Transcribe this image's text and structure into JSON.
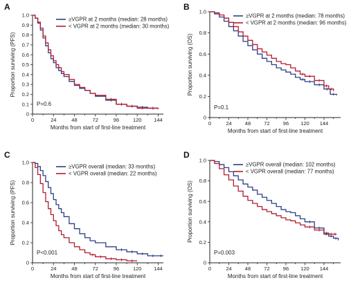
{
  "colors": {
    "blue": "#2a3f85",
    "red": "#b01c2e",
    "axis": "#222222"
  },
  "chart_data": [
    {
      "type": "line",
      "panel_label": "A",
      "xlabel": "Months from start of first-line treatment",
      "ylabel": "Proportion surviving (PFS)",
      "xlim": [
        0,
        150
      ],
      "ylim": [
        0,
        1.0
      ],
      "xticks": [
        0,
        24,
        48,
        72,
        96,
        120,
        144
      ],
      "yticks": [
        0,
        0.1,
        0.2,
        0.3,
        0.4,
        0.5,
        0.6,
        0.7,
        0.8,
        0.9,
        1.0
      ],
      "legend_position": "top-right",
      "annotation": "P=0.6",
      "series": [
        {
          "name": "≥VGPR at 2 months (median: 28 months)",
          "color": "#2a3f85",
          "x": [
            0,
            3,
            6,
            9,
            12,
            15,
            18,
            21,
            24,
            27,
            30,
            33,
            36,
            42,
            48,
            54,
            60,
            66,
            72,
            84,
            96,
            108,
            120,
            132,
            144
          ],
          "y": [
            1.0,
            0.97,
            0.92,
            0.85,
            0.77,
            0.69,
            0.62,
            0.56,
            0.52,
            0.47,
            0.44,
            0.41,
            0.38,
            0.33,
            0.29,
            0.26,
            0.24,
            0.21,
            0.18,
            0.14,
            0.1,
            0.08,
            0.07,
            0.06,
            0.06
          ]
        },
        {
          "name": "< VGPR at 2 months (median: 30 months)",
          "color": "#b01c2e",
          "x": [
            0,
            3,
            6,
            9,
            12,
            15,
            18,
            21,
            24,
            27,
            30,
            33,
            36,
            42,
            48,
            54,
            60,
            66,
            72,
            84,
            96,
            108,
            120,
            132,
            144
          ],
          "y": [
            1.0,
            0.97,
            0.93,
            0.87,
            0.79,
            0.72,
            0.65,
            0.59,
            0.54,
            0.5,
            0.47,
            0.43,
            0.4,
            0.35,
            0.3,
            0.27,
            0.24,
            0.21,
            0.19,
            0.15,
            0.1,
            0.08,
            0.06,
            0.06,
            0.05
          ]
        }
      ]
    },
    {
      "type": "line",
      "panel_label": "B",
      "xlabel": "Months from start of first-line treatment",
      "ylabel": "Proportion surviving (OS)",
      "xlim": [
        0,
        165
      ],
      "ylim": [
        0,
        1.0
      ],
      "xticks": [
        0,
        24,
        48,
        72,
        96,
        120,
        144
      ],
      "yticks": [
        0,
        0.2,
        0.4,
        0.6,
        0.8,
        1.0
      ],
      "legend_position": "top-right",
      "annotation": "P=0.1",
      "series": [
        {
          "name": "≥VGPR at 2 months (median: 78 months)",
          "color": "#2a3f85",
          "x": [
            0,
            6,
            12,
            18,
            24,
            30,
            36,
            42,
            48,
            54,
            60,
            66,
            72,
            78,
            84,
            90,
            96,
            102,
            108,
            114,
            120,
            132,
            144,
            152,
            160
          ],
          "y": [
            1.0,
            0.98,
            0.95,
            0.91,
            0.86,
            0.82,
            0.77,
            0.72,
            0.68,
            0.64,
            0.6,
            0.56,
            0.53,
            0.5,
            0.47,
            0.45,
            0.43,
            0.41,
            0.38,
            0.36,
            0.34,
            0.31,
            0.27,
            0.22,
            0.21
          ]
        },
        {
          "name": "< VGPR at 2 months (median: 96 months)",
          "color": "#b01c2e",
          "x": [
            0,
            6,
            12,
            18,
            24,
            30,
            36,
            42,
            48,
            54,
            60,
            66,
            72,
            78,
            84,
            90,
            96,
            102,
            108,
            114,
            120,
            132,
            144,
            150,
            156
          ],
          "y": [
            1.0,
            0.99,
            0.97,
            0.94,
            0.9,
            0.86,
            0.81,
            0.77,
            0.73,
            0.69,
            0.65,
            0.62,
            0.59,
            0.56,
            0.53,
            0.51,
            0.5,
            0.47,
            0.44,
            0.41,
            0.39,
            0.35,
            0.3,
            0.27,
            0.25
          ]
        }
      ]
    },
    {
      "type": "line",
      "panel_label": "C",
      "xlabel": "Months from start of first-line treatment",
      "ylabel": "Proportion surviving (PFS)",
      "xlim": [
        0,
        150
      ],
      "ylim": [
        0,
        1.0
      ],
      "xticks": [
        0,
        24,
        48,
        72,
        96,
        120,
        144
      ],
      "yticks": [
        0,
        0.2,
        0.4,
        0.6,
        0.8,
        1.0
      ],
      "legend_position": "top-right",
      "annotation": "P<0.001",
      "series": [
        {
          "name": "≥VGPR overall (median: 33 months)",
          "color": "#2a3f85",
          "x": [
            0,
            3,
            6,
            9,
            12,
            15,
            18,
            21,
            24,
            27,
            30,
            33,
            36,
            42,
            48,
            54,
            60,
            66,
            72,
            84,
            96,
            108,
            120,
            132,
            144,
            150
          ],
          "y": [
            1.0,
            0.99,
            0.96,
            0.92,
            0.87,
            0.81,
            0.75,
            0.69,
            0.63,
            0.58,
            0.54,
            0.5,
            0.46,
            0.39,
            0.34,
            0.29,
            0.25,
            0.22,
            0.2,
            0.16,
            0.13,
            0.11,
            0.09,
            0.07,
            0.07,
            0.07
          ]
        },
        {
          "name": "< VGPR overall (median: 22 months)",
          "color": "#b01c2e",
          "x": [
            0,
            3,
            6,
            9,
            12,
            15,
            18,
            21,
            24,
            27,
            30,
            33,
            36,
            42,
            48,
            54,
            60,
            66,
            72,
            84,
            96,
            108,
            120
          ],
          "y": [
            1.0,
            0.95,
            0.88,
            0.79,
            0.7,
            0.61,
            0.54,
            0.48,
            0.42,
            0.37,
            0.32,
            0.28,
            0.25,
            0.2,
            0.16,
            0.13,
            0.1,
            0.08,
            0.06,
            0.04,
            0.03,
            0.02,
            0.02
          ]
        }
      ]
    },
    {
      "type": "line",
      "panel_label": "D",
      "xlabel": "Months from start of first-line treatment",
      "ylabel": "Proportion surviving (OS)",
      "xlim": [
        0,
        165
      ],
      "ylim": [
        0,
        1.0
      ],
      "xticks": [
        0,
        24,
        48,
        72,
        96,
        120,
        144
      ],
      "yticks": [
        0,
        0.2,
        0.4,
        0.6,
        0.8,
        1.0
      ],
      "legend_position": "top-right",
      "annotation": "P=0.003",
      "series": [
        {
          "name": "≥VGPR overall (median: 102 months)",
          "color": "#2a3f85",
          "x": [
            0,
            6,
            12,
            18,
            24,
            30,
            36,
            42,
            48,
            54,
            60,
            66,
            72,
            78,
            84,
            90,
            96,
            102,
            108,
            114,
            120,
            132,
            144,
            150,
            156,
            162
          ],
          "y": [
            1.0,
            0.99,
            0.96,
            0.93,
            0.89,
            0.85,
            0.81,
            0.77,
            0.74,
            0.71,
            0.67,
            0.64,
            0.61,
            0.58,
            0.55,
            0.52,
            0.5,
            0.49,
            0.46,
            0.43,
            0.4,
            0.34,
            0.28,
            0.26,
            0.24,
            0.22
          ]
        },
        {
          "name": "< VGPR overall (median: 77 months)",
          "color": "#b01c2e",
          "x": [
            0,
            6,
            12,
            18,
            24,
            30,
            36,
            42,
            48,
            54,
            60,
            66,
            72,
            78,
            84,
            90,
            96,
            102,
            108,
            114,
            120,
            132,
            144,
            150,
            156,
            160
          ],
          "y": [
            1.0,
            0.97,
            0.92,
            0.86,
            0.81,
            0.75,
            0.7,
            0.65,
            0.61,
            0.58,
            0.55,
            0.52,
            0.5,
            0.48,
            0.46,
            0.44,
            0.42,
            0.41,
            0.39,
            0.37,
            0.35,
            0.32,
            0.29,
            0.28,
            0.28,
            0.28
          ]
        }
      ]
    }
  ]
}
